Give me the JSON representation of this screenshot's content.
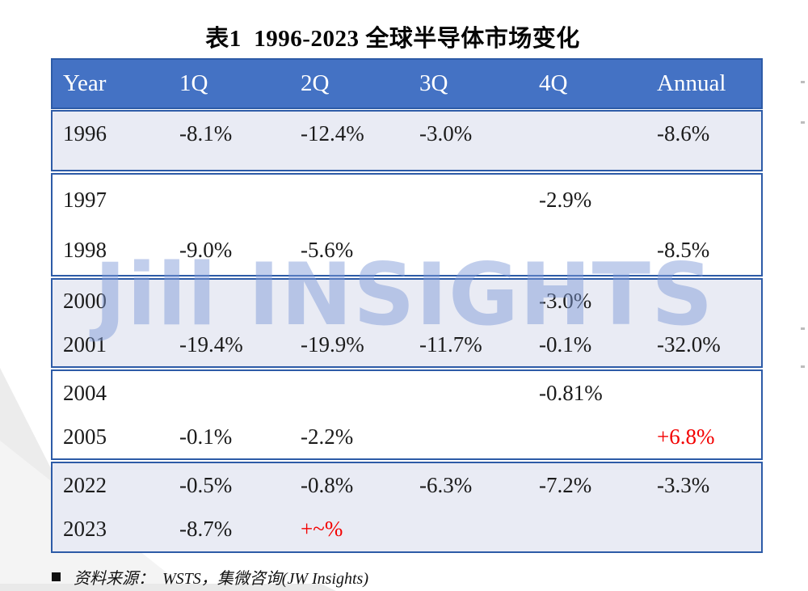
{
  "page": {
    "title": "表1  1996-2023 全球半导体市场变化",
    "watermark": "Jill INSIGHTS",
    "source_bullet": "■",
    "source_note": "资料来源：  WSTS，集微咨询(JW Insights)"
  },
  "colors": {
    "header_bg": "#4472c4",
    "table_border": "#2d5ba7",
    "band_light_bg": "#e9ebf4",
    "band_white_bg": "#ffffff",
    "highlight_red": "#f30000",
    "watermark_blue": "#7f9bd8"
  },
  "chart_data": {
    "type": "table",
    "title": "表1 1996-2023 全球半导体市场变化",
    "columns": [
      "Year",
      "1Q",
      "2Q",
      "3Q",
      "4Q",
      "Annual"
    ],
    "bands": [
      {
        "tone": "light",
        "rows": [
          {
            "cells": [
              "1996",
              "-8.1%",
              "-12.4%",
              "-3.0%",
              "",
              "-8.6%"
            ],
            "red": []
          }
        ]
      },
      {
        "tone": "white",
        "rows": [
          {
            "cells": [
              "1997",
              "",
              "",
              "",
              "-2.9%",
              ""
            ],
            "red": []
          },
          {
            "cells": [
              "1998",
              "-9.0%",
              "-5.6%",
              "",
              "",
              "-8.5%"
            ],
            "red": []
          }
        ]
      },
      {
        "tone": "light",
        "rows": [
          {
            "cells": [
              "2000",
              "",
              "",
              "",
              "-3.0%",
              ""
            ],
            "red": []
          },
          {
            "cells": [
              "2001",
              "-19.4%",
              "-19.9%",
              "-11.7%",
              "-0.1%",
              "-32.0%"
            ],
            "red": []
          }
        ]
      },
      {
        "tone": "white",
        "rows": [
          {
            "cells": [
              "2004",
              "",
              "",
              "",
              "-0.81%",
              ""
            ],
            "red": []
          },
          {
            "cells": [
              "2005",
              "-0.1%",
              "-2.2%",
              "",
              "",
              "+6.8%"
            ],
            "red": [
              5
            ]
          }
        ]
      },
      {
        "tone": "light",
        "rows": [
          {
            "cells": [
              "2022",
              "-0.5%",
              "-0.8%",
              "-6.3%",
              "-7.2%",
              "-3.3%"
            ],
            "red": []
          },
          {
            "cells": [
              "2023",
              "-8.7%",
              "+~%",
              "",
              "",
              ""
            ],
            "red": [
              2
            ]
          }
        ]
      }
    ]
  }
}
